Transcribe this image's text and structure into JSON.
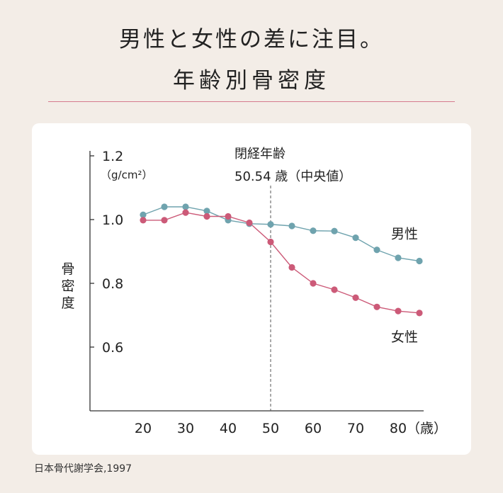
{
  "header": {
    "headline": "男性と女性の差に注目。",
    "subhead": "年齢別骨密度"
  },
  "source": "日本骨代謝学会,1997",
  "chart_data": {
    "type": "line",
    "title": "年齢別骨密度",
    "ylabel": "骨密度",
    "yunit": "（g/cm²）",
    "xunit": "（歳）",
    "ylim": [
      0.6,
      1.2
    ],
    "yticks": [
      {
        "value": 1.2,
        "label": "1.2"
      },
      {
        "value": 1.0,
        "label": "1.0"
      },
      {
        "value": 0.8,
        "label": "0.8"
      },
      {
        "value": 0.6,
        "label": "0.6"
      }
    ],
    "xlim": [
      15,
      85
    ],
    "xticks": [
      {
        "value": 20,
        "label": "20"
      },
      {
        "value": 30,
        "label": "30"
      },
      {
        "value": 40,
        "label": "40"
      },
      {
        "value": 50,
        "label": "50"
      },
      {
        "value": 60,
        "label": "60"
      },
      {
        "value": 70,
        "label": "70"
      },
      {
        "value": 80,
        "label": "80"
      }
    ],
    "annotation": {
      "x": 50,
      "line1": "閉経年齢",
      "line2": "50.54 歳（中央値）"
    },
    "series": [
      {
        "name": "男性",
        "color": "#6fa3ae",
        "x": [
          20,
          25,
          30,
          35,
          40,
          45,
          50,
          55,
          60,
          65,
          70,
          75,
          80,
          85
        ],
        "y": [
          1.015,
          1.04,
          1.04,
          1.027,
          0.998,
          0.987,
          0.985,
          0.98,
          0.965,
          0.964,
          0.943,
          0.905,
          0.88,
          0.87
        ]
      },
      {
        "name": "女性",
        "color": "#cc5a78",
        "x": [
          20,
          25,
          30,
          35,
          40,
          45,
          50,
          55,
          60,
          65,
          70,
          75,
          80,
          85
        ],
        "y": [
          0.998,
          0.998,
          1.022,
          1.01,
          1.01,
          0.99,
          0.93,
          0.85,
          0.8,
          0.78,
          0.755,
          0.726,
          0.713,
          0.707
        ]
      }
    ]
  }
}
